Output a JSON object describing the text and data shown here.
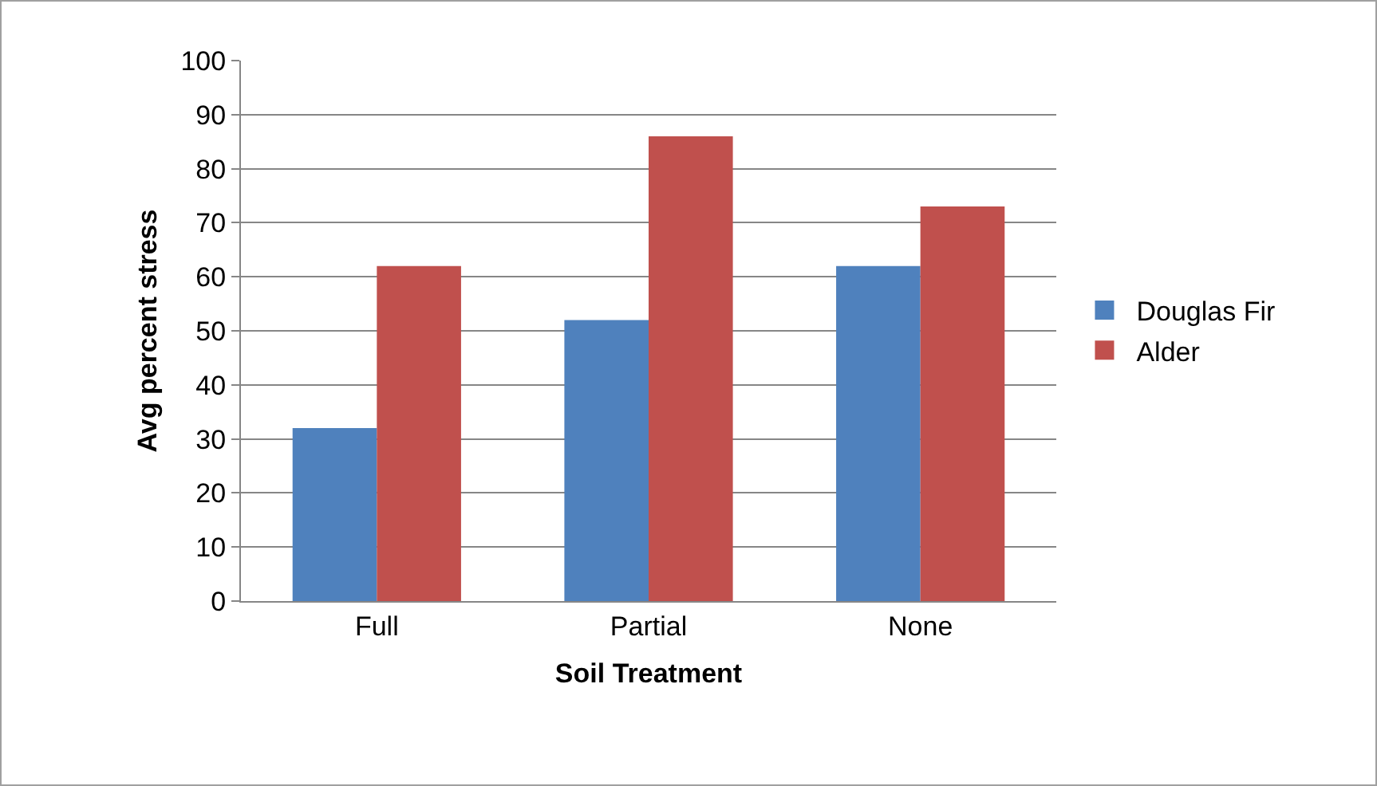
{
  "chart_data": {
    "type": "bar",
    "xlabel": "Soil Treatment",
    "ylabel": "Avg percent stress",
    "categories": [
      "Full",
      "Partial",
      "None"
    ],
    "series": [
      {
        "name": "Douglas Fir",
        "color": "#4f81bd",
        "values": [
          32,
          52,
          62
        ]
      },
      {
        "name": "Alder",
        "color": "#c0504d",
        "values": [
          62,
          86,
          73
        ]
      }
    ],
    "ylim": [
      0,
      100
    ],
    "yticks": [
      0,
      10,
      20,
      30,
      40,
      50,
      60,
      70,
      80,
      90,
      100
    ],
    "grid": "y",
    "legend": "right"
  }
}
